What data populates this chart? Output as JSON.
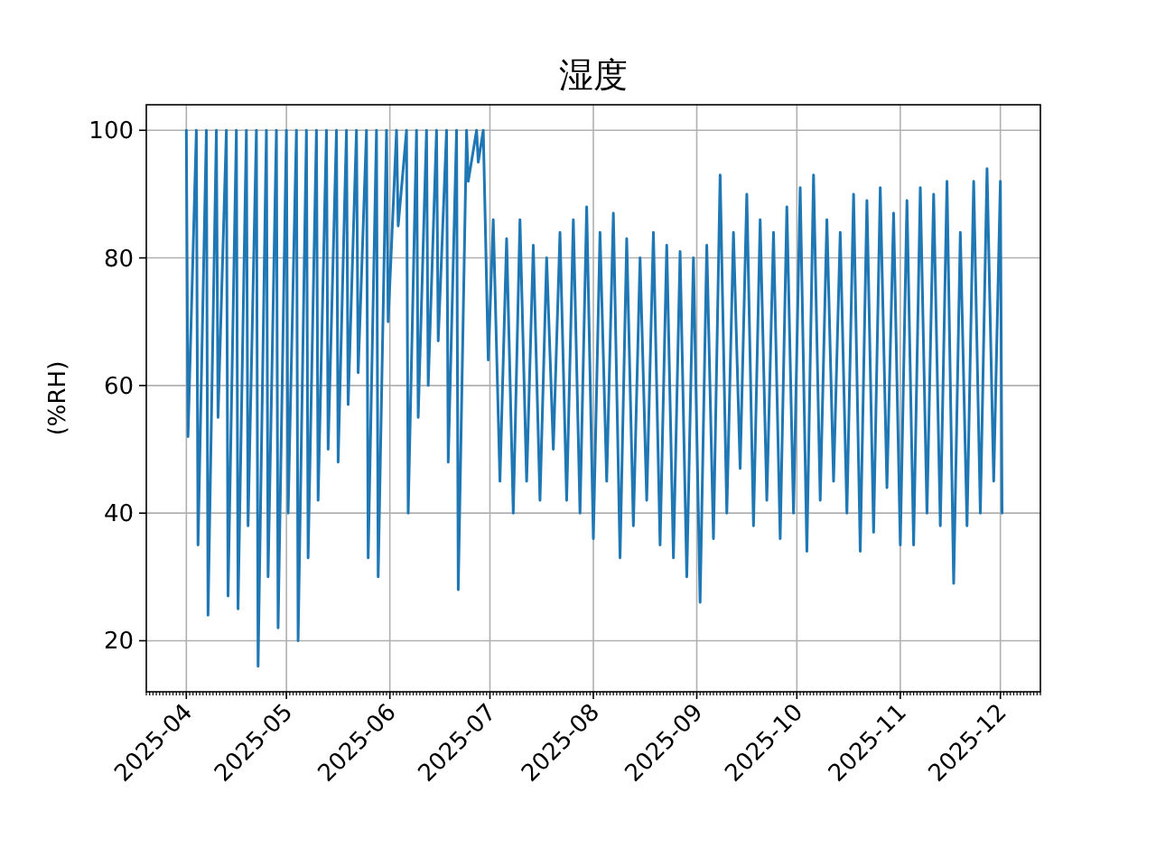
{
  "chart_data": {
    "type": "line",
    "title": "湿度",
    "ylabel": "(%RH)",
    "grid": true,
    "xlim": [
      "2025-03-20",
      "2025-12-13"
    ],
    "ylim": [
      12,
      104
    ],
    "xticks": [
      "2025-04",
      "2025-05",
      "2025-06",
      "2025-07",
      "2025-08",
      "2025-09",
      "2025-10",
      "2025-11",
      "2025-12"
    ],
    "yticks": [
      20,
      40,
      60,
      80,
      100
    ],
    "x": [
      "2025-04-01",
      "2025-04-01T12:00",
      "2025-04-04",
      "2025-04-04T12:00",
      "2025-04-07",
      "2025-04-07T12:00",
      "2025-04-10",
      "2025-04-10T12:00",
      "2025-04-13",
      "2025-04-13T12:00",
      "2025-04-16",
      "2025-04-16T12:00",
      "2025-04-19",
      "2025-04-19T12:00",
      "2025-04-22",
      "2025-04-22T12:00",
      "2025-04-25",
      "2025-04-25T12:00",
      "2025-04-28",
      "2025-04-28T12:00",
      "2025-05-01",
      "2025-05-01T12:00",
      "2025-05-04",
      "2025-05-04T12:00",
      "2025-05-07",
      "2025-05-07T12:00",
      "2025-05-10",
      "2025-05-10T12:00",
      "2025-05-13",
      "2025-05-13T12:00",
      "2025-05-16",
      "2025-05-16T12:00",
      "2025-05-19",
      "2025-05-19T12:00",
      "2025-05-22",
      "2025-05-22T12:00",
      "2025-05-25",
      "2025-05-25T12:00",
      "2025-05-28",
      "2025-05-28T12:00",
      "2025-05-31",
      "2025-05-31T12:00",
      "2025-06-03",
      "2025-06-03T12:00",
      "2025-06-06",
      "2025-06-06T12:00",
      "2025-06-09",
      "2025-06-09T12:00",
      "2025-06-12",
      "2025-06-12T12:00",
      "2025-06-15",
      "2025-06-15T12:00",
      "2025-06-18",
      "2025-06-18T12:00",
      "2025-06-21",
      "2025-06-21T12:00",
      "2025-06-24",
      "2025-06-24T12:00",
      "2025-06-27",
      "2025-06-27T12:00",
      "2025-06-29",
      "2025-06-30T12:00",
      "2025-07-02",
      "2025-07-04",
      "2025-07-06",
      "2025-07-08",
      "2025-07-10",
      "2025-07-12",
      "2025-07-14",
      "2025-07-16",
      "2025-07-18",
      "2025-07-20",
      "2025-07-22",
      "2025-07-24",
      "2025-07-26",
      "2025-07-28",
      "2025-07-30",
      "2025-08-01",
      "2025-08-03",
      "2025-08-05",
      "2025-08-07",
      "2025-08-09",
      "2025-08-11",
      "2025-08-13",
      "2025-08-15",
      "2025-08-17",
      "2025-08-19",
      "2025-08-21",
      "2025-08-23",
      "2025-08-25",
      "2025-08-27",
      "2025-08-29",
      "2025-08-31",
      "2025-09-02",
      "2025-09-04",
      "2025-09-06",
      "2025-09-08",
      "2025-09-10",
      "2025-09-12",
      "2025-09-14",
      "2025-09-16",
      "2025-09-18",
      "2025-09-20",
      "2025-09-22",
      "2025-09-24",
      "2025-09-26",
      "2025-09-28",
      "2025-09-30",
      "2025-10-02",
      "2025-10-04",
      "2025-10-06",
      "2025-10-08",
      "2025-10-10",
      "2025-10-12",
      "2025-10-14",
      "2025-10-16",
      "2025-10-18",
      "2025-10-20",
      "2025-10-22",
      "2025-10-24",
      "2025-10-26",
      "2025-10-28",
      "2025-10-30",
      "2025-11-01",
      "2025-11-03",
      "2025-11-05",
      "2025-11-07",
      "2025-11-09",
      "2025-11-11",
      "2025-11-13",
      "2025-11-15",
      "2025-11-17",
      "2025-11-19",
      "2025-11-21",
      "2025-11-23",
      "2025-11-25",
      "2025-11-27",
      "2025-11-29",
      "2025-12-01",
      "2025-12-01T12:00"
    ],
    "series": [
      {
        "color": "#1f77b4",
        "values": [
          100,
          52,
          100,
          35,
          100,
          24,
          100,
          55,
          100,
          27,
          100,
          25,
          100,
          38,
          100,
          16,
          100,
          30,
          100,
          22,
          100,
          40,
          100,
          20,
          100,
          33,
          100,
          42,
          100,
          50,
          100,
          48,
          100,
          57,
          100,
          62,
          100,
          33,
          100,
          30,
          100,
          70,
          100,
          85,
          100,
          40,
          100,
          55,
          100,
          60,
          100,
          67,
          100,
          48,
          100,
          28,
          100,
          92,
          100,
          95,
          100,
          64,
          86,
          45,
          83,
          40,
          86,
          45,
          82,
          42,
          80,
          50,
          84,
          42,
          86,
          40,
          88,
          36,
          84,
          45,
          87,
          33,
          83,
          38,
          80,
          42,
          84,
          35,
          82,
          33,
          81,
          30,
          80,
          26,
          82,
          36,
          93,
          40,
          84,
          47,
          90,
          38,
          86,
          42,
          84,
          36,
          88,
          40,
          91,
          34,
          93,
          42,
          86,
          45,
          84,
          40,
          90,
          34,
          89,
          37,
          91,
          44,
          87,
          35,
          89,
          35,
          91,
          40,
          90,
          38,
          92,
          29,
          84,
          38,
          92,
          40,
          94,
          45,
          92,
          40
        ]
      }
    ]
  }
}
